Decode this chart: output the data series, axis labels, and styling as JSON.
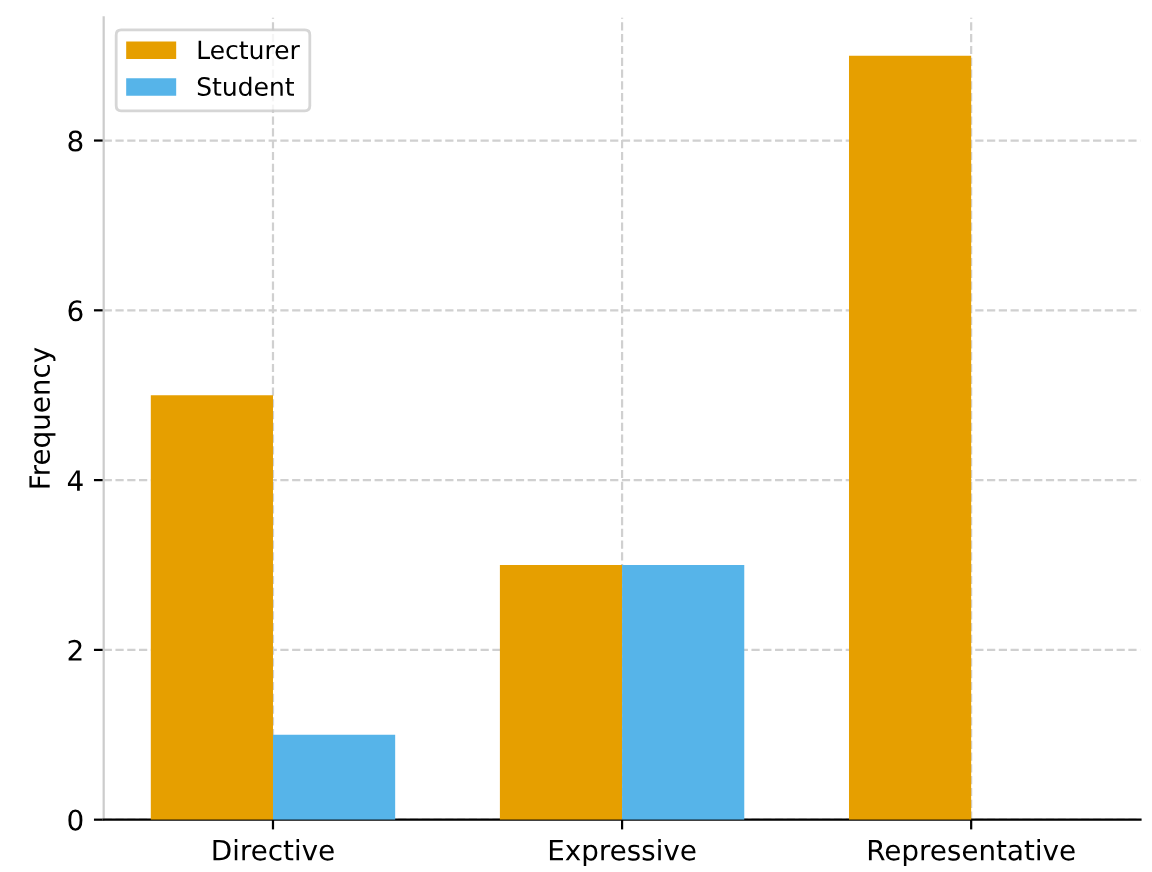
{
  "chart_data": {
    "type": "bar",
    "ylabel": "Frequency",
    "categories": [
      "Directive",
      "Expressive",
      "Representative"
    ],
    "series": [
      {
        "name": "Lecturer",
        "color": "#e69f00",
        "values": [
          5,
          3,
          9
        ]
      },
      {
        "name": "Student",
        "color": "#56b4e9",
        "values": [
          1,
          3,
          0
        ]
      }
    ],
    "ylim": [
      0,
      9.45
    ],
    "yticks": [
      0,
      2,
      4,
      6,
      8
    ],
    "grid": true,
    "legend": "top left"
  }
}
